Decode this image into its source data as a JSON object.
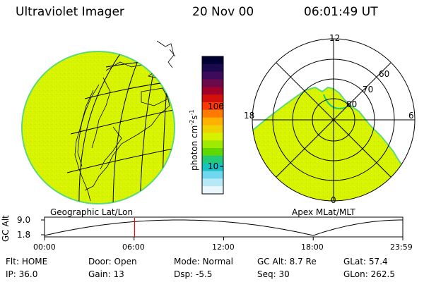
{
  "header": {
    "instrument": "Ultraviolet Imager",
    "date": "20 Nov 00",
    "time": "06:01:49 UT"
  },
  "colorbar": {
    "unit_label": "photon cm",
    "unit_exp1": "-2",
    "unit_mid": "s",
    "unit_exp2": "-1",
    "ticks": [
      "100",
      "10"
    ],
    "colors": [
      "#000033",
      "#1a0a4d",
      "#3d0a5c",
      "#6b0a4a",
      "#a1002a",
      "#d4100a",
      "#ff3a00",
      "#ff7a00",
      "#ffb000",
      "#f0d000",
      "#d7f000",
      "#9eea00",
      "#5fd800",
      "#22c97a",
      "#16c2c2",
      "#6fd7ee",
      "#b7e8f6",
      "#e9f6fb"
    ]
  },
  "geo_panel": {
    "label": "Geographic Lat/Lon",
    "fill_color": "#d8f400",
    "edge_color": "#5fd87a"
  },
  "polar_panel": {
    "label": "Apex MLat/MLT",
    "mlt_labels": {
      "top": "12",
      "left": "18",
      "right": "6",
      "bottom": "0"
    },
    "lat_labels": [
      "60",
      "70",
      "80"
    ]
  },
  "timeline": {
    "ylabel": "GC Alt",
    "y_ticks": [
      "9.0",
      "1.8"
    ],
    "y_range": [
      1.8,
      9.0
    ],
    "x_ticks": [
      "00:00",
      "06:00",
      "12:00",
      "18:00",
      "23:59"
    ],
    "current_time_marker": "06:01:49",
    "marker_color": "#ff0000"
  },
  "status": {
    "row1": [
      {
        "label": "Flt:",
        "value": "HOME"
      },
      {
        "label": "Door:",
        "value": "Open"
      },
      {
        "label": "Mode:",
        "value": "Normal"
      },
      {
        "label": "GC Alt:",
        "value": "8.7 Re"
      },
      {
        "label": "GLat:",
        "value": "57.4"
      }
    ],
    "row2": [
      {
        "label": "IP:",
        "value": "36.0"
      },
      {
        "label": "Gain:",
        "value": "13"
      },
      {
        "label": "Dsp:",
        "value": "-5.5"
      },
      {
        "label": "Seq:",
        "value": "30"
      },
      {
        "label": "GLon:",
        "value": "262.5"
      }
    ]
  }
}
